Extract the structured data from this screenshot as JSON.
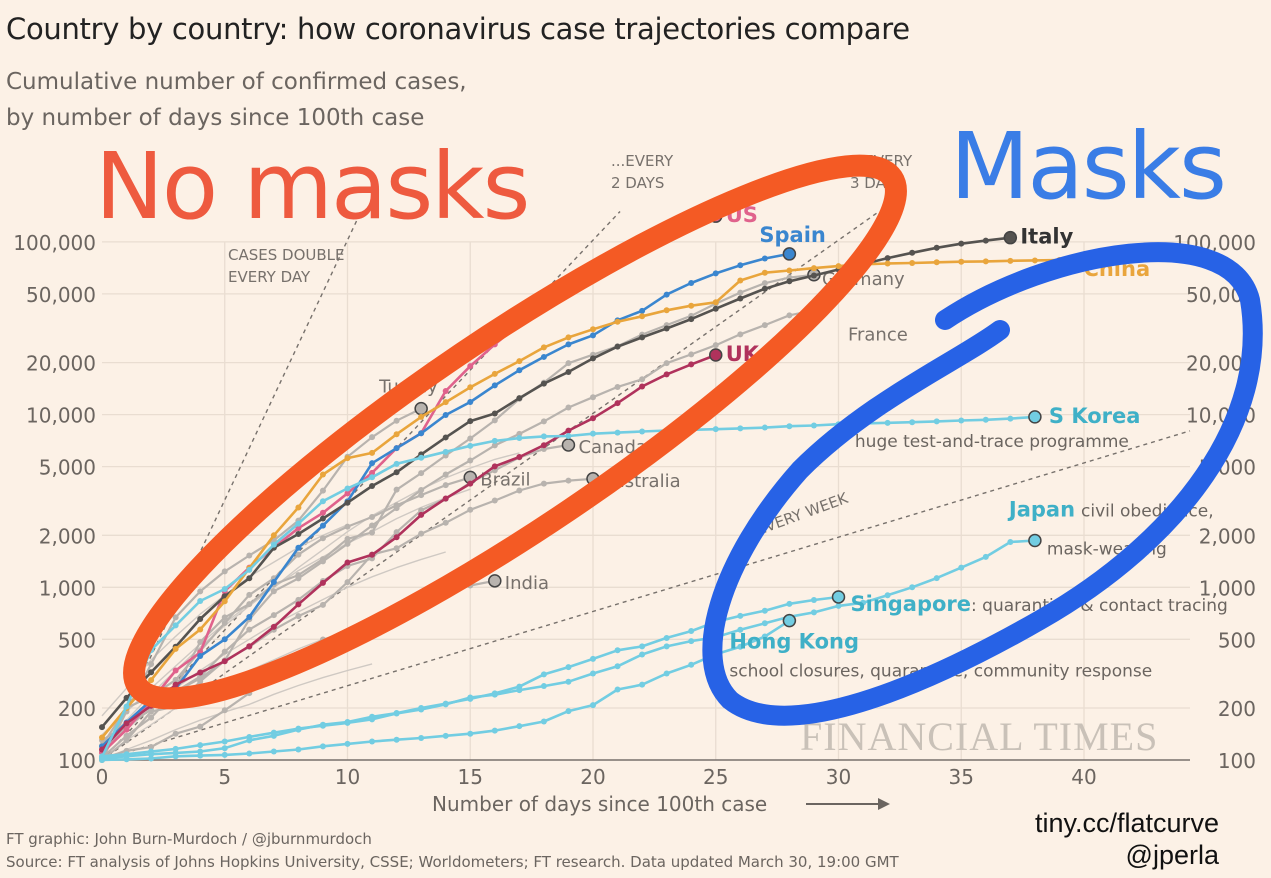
{
  "chart_data": {
    "type": "line",
    "title": "Country by country: how coronavirus case trajectories compare",
    "subtitle_lines": [
      "Cumulative number of confirmed cases,",
      "by number of days since 100th case"
    ],
    "xlabel": "Number of days since 100th case",
    "ylabel": "",
    "x_scale": "linear",
    "y_scale": "log",
    "xlim": [
      0,
      44
    ],
    "ylim": [
      100,
      100000
    ],
    "x_ticks": [
      0,
      5,
      10,
      15,
      20,
      25,
      30,
      35,
      40
    ],
    "y_ticks": [
      100,
      200,
      500,
      1000,
      2000,
      5000,
      10000,
      20000,
      50000,
      100000
    ],
    "y_tick_labels": [
      "100",
      "200",
      "500",
      "1,000",
      "2,000",
      "5,000",
      "10,000",
      "20,000",
      "50,000",
      "100,000"
    ],
    "grid": true,
    "y_axis_both_sides": true,
    "doubling_guides": [
      {
        "label_lines": [
          "CASES DOUBLE",
          "EVERY DAY"
        ],
        "days_per_doubling": 1
      },
      {
        "label_lines": [
          "...EVERY",
          "2 DAYS"
        ],
        "days_per_doubling": 2
      },
      {
        "label_lines": [
          "...EVERY",
          "3 DAYS"
        ],
        "days_per_doubling": 3
      },
      {
        "label_lines": [
          "...EVERY WEEK"
        ],
        "days_per_doubling": 7
      }
    ],
    "series": [
      {
        "name": "US",
        "color": "#e0628c",
        "label_color": "#e0628c",
        "bold": true,
        "values": [
          110,
          150,
          220,
          330,
          420,
          950,
          1300,
          1700,
          2200,
          2700,
          3500,
          4600,
          6400,
          7800,
          13700,
          19100,
          25500,
          33300,
          43800,
          53700,
          65800,
          83800,
          101700,
          121500,
          131000,
          140900
        ]
      },
      {
        "name": "Spain",
        "color": "#3a86cf",
        "label_color": "#3a86cf",
        "bold": true,
        "values": [
          120,
          165,
          222,
          259,
          400,
          500,
          673,
          1073,
          1695,
          2277,
          3146,
          5232,
          6391,
          7798,
          9942,
          11826,
          14769,
          18077,
          21571,
          25496,
          28768,
          35136,
          39885,
          49515,
          57786,
          65719,
          73235,
          80110,
          85195
        ]
      },
      {
        "name": "Italy",
        "color": "#555350",
        "label_color": "#333333",
        "bold": true,
        "values": [
          155,
          229,
          322,
          453,
          655,
          888,
          1128,
          1694,
          2036,
          2502,
          3089,
          3858,
          4636,
          5883,
          7375,
          9172,
          10149,
          12462,
          15113,
          17660,
          21157,
          24747,
          27980,
          31506,
          35713,
          41035,
          47021,
          53578,
          59138,
          63927,
          69176,
          74386,
          80589,
          86498,
          92472,
          97689,
          101739,
          105792
        ]
      },
      {
        "name": "China",
        "color": "#e9a53c",
        "label_color": "#e9a53c",
        "bold": true,
        "end_marker": false,
        "values": [
          135,
          200,
          290,
          440,
          570,
          830,
          1290,
          2000,
          2900,
          4500,
          5600,
          6000,
          7700,
          9700,
          11800,
          14400,
          17200,
          20400,
          24500,
          28000,
          31200,
          34500,
          37100,
          40200,
          42700,
          44700,
          59800,
          66300,
          68300,
          70500,
          72400,
          74200,
          75000,
          75500,
          76200,
          76800,
          77100,
          77700,
          78100,
          78500
        ]
      },
      {
        "name": "Germany",
        "color": "#b8b3ae",
        "label_color": "#77716c",
        "values": [
          130,
          159,
          196,
          262,
          482,
          670,
          799,
          1040,
          1176,
          1457,
          1908,
          2078,
          3675,
          4585,
          5795,
          7272,
          9257,
          12327,
          15320,
          19848,
          22213,
          24873,
          29056,
          32986,
          37323,
          43938,
          50871,
          57695,
          62095,
          64500
        ]
      },
      {
        "name": "France",
        "color": "#b8b3ae",
        "label_color": "#77716c",
        "end_marker": false,
        "values": [
          100,
          130,
          191,
          204,
          285,
          377,
          653,
          949,
          1126,
          1412,
          1784,
          2281,
          2876,
          3661,
          4499,
          5423,
          6633,
          7730,
          9134,
          10995,
          12612,
          14459,
          16018,
          19856,
          22304,
          25233,
          29155,
          32964,
          37575,
          40174
        ]
      },
      {
        "name": "UK",
        "color": "#b0325c",
        "label_color": "#b0325c",
        "bold": true,
        "values": [
          115,
          163,
          206,
          273,
          321,
          373,
          456,
          590,
          797,
          1061,
          1391,
          1543,
          1950,
          2626,
          3269,
          3983,
          5018,
          5683,
          6650,
          8077,
          9529,
          11658,
          14543,
          17089,
          19522,
          22141
        ]
      },
      {
        "name": "S Korea",
        "note": "huge test-and-trace programme",
        "color": "#72cde2",
        "label_color": "#3fb0c7",
        "bold": true,
        "values": [
          104,
          204,
          433,
          602,
          833,
          977,
          1261,
          1766,
          2337,
          3150,
          3736,
          4335,
          5186,
          5621,
          6088,
          6593,
          7041,
          7314,
          7478,
          7513,
          7755,
          7869,
          7979,
          8086,
          8162,
          8236,
          8320,
          8413,
          8565,
          8652,
          8799,
          8897,
          8961,
          9037,
          9137,
          9241,
          9332,
          9478,
          9700
        ]
      },
      {
        "name": "Japan",
        "note": "civil obedience, mask-wearing",
        "color": "#72cde2",
        "label_color": "#3fb0c7",
        "bold": true,
        "values": [
          105,
          108,
          112,
          116,
          122,
          128,
          136,
          144,
          152,
          158,
          164,
          172,
          186,
          196,
          210,
          230,
          239,
          254,
          268,
          284,
          317,
          349,
          408,
          455,
          488,
          514,
          568,
          619,
          675,
          716,
          780,
          814,
          900,
          1000,
          1130,
          1300,
          1500,
          1830,
          1866
        ]
      },
      {
        "name": "Singapore",
        "note": ": quarantine & contact tracing",
        "color": "#72cde2",
        "label_color": "#3fb0c7",
        "bold": true,
        "values": [
          102,
          105,
          108,
          110,
          112,
          117,
          130,
          138,
          150,
          160,
          166,
          178,
          187,
          200,
          212,
          226,
          243,
          266,
          313,
          345,
          385,
          432,
          455,
          509,
          558,
          631,
          683,
          732,
          802,
          844,
          879
        ]
      },
      {
        "name": "Hong Kong",
        "note": "school closures, quarantine, community response",
        "color": "#72cde2",
        "label_color": "#3fb0c7",
        "bold": true,
        "values": [
          100,
          101,
          102,
          105,
          106,
          107,
          109,
          112,
          115,
          120,
          124,
          128,
          131,
          134,
          138,
          142,
          148,
          157,
          167,
          192,
          208,
          256,
          273,
          317,
          356,
          410,
          453,
          519,
          641
        ]
      },
      {
        "name": "Turkey",
        "color": "#b8b3ae",
        "label_color": "#77716c",
        "values": [
          100,
          191,
          359,
          670,
          947,
          1236,
          1529,
          1872,
          2433,
          3629,
          5698,
          7402,
          9217,
          10827
        ]
      },
      {
        "name": "Canada",
        "color": "#b8b3ae",
        "label_color": "#77716c",
        "values": [
          103,
          138,
          176,
          249,
          304,
          424,
          569,
          690,
          846,
          1087,
          1328,
          1470,
          2088,
          2790,
          3251,
          4042,
          4757,
          5655,
          6320,
          6671
        ]
      },
      {
        "name": "Brazil",
        "color": "#b8b3ae",
        "label_color": "#77716c",
        "values": [
          121,
          200,
          234,
          291,
          428,
          621,
          904,
          1128,
          1546,
          1924,
          2247,
          2554,
          2985,
          3417,
          3904,
          4330
        ]
      },
      {
        "name": "Australia",
        "color": "#b8b3ae",
        "label_color": "#77716c",
        "values": [
          112,
          156,
          197,
          250,
          297,
          377,
          452,
          568,
          681,
          791,
          1071,
          1549,
          1682,
          2044,
          2364,
          2810,
          3179,
          3635,
          3985,
          4150,
          4250
        ]
      },
      {
        "name": "India",
        "color": "#b8b3ae",
        "label_color": "#77716c",
        "values": [
          102,
          113,
          119,
          142,
          156,
          194,
          244,
          330,
          396,
          499,
          536,
          657,
          727,
          887,
          987,
          1024,
          1090
        ]
      },
      {
        "color": "#cfc9c3",
        "thin": true,
        "values": [
          140,
          190,
          260,
          350,
          470,
          620,
          800,
          1000,
          1250,
          1500,
          1800,
          2100,
          2500,
          2900,
          3300,
          3700
        ]
      },
      {
        "color": "#cfc9c3",
        "thin": true,
        "values": [
          110,
          150,
          200,
          260,
          330,
          410,
          500,
          610,
          720,
          850,
          1000,
          1150,
          1300,
          1450,
          1600
        ]
      },
      {
        "color": "#cfc9c3",
        "thin": true,
        "values": [
          120,
          170,
          240,
          330,
          450,
          600,
          780,
          1000,
          1300,
          1650,
          2100,
          2600,
          3100,
          3700,
          4300,
          4900,
          5500,
          6000
        ]
      },
      {
        "color": "#cfc9c3",
        "thin": true,
        "values": [
          100,
          130,
          160,
          200,
          240,
          280,
          330,
          380,
          440,
          500,
          560,
          620,
          700,
          760
        ]
      },
      {
        "color": "#cfc9c3",
        "thin": true,
        "values": [
          180,
          260,
          380,
          520,
          700,
          900,
          1150,
          1400,
          1700,
          2000,
          2300
        ]
      },
      {
        "color": "#cfc9c3",
        "thin": true,
        "values": [
          100,
          115,
          130,
          150,
          170,
          190,
          210,
          240,
          270,
          300,
          330,
          360
        ]
      }
    ],
    "watermark": "FINANCIAL TIMES"
  },
  "overlay_annotations": {
    "no_masks": {
      "text": "No masks",
      "color": "#ee5a3f"
    },
    "masks": {
      "text": "Masks",
      "color": "#3a7de6"
    },
    "red_loop_color": "#f45a24",
    "blue_loop_color": "#2762e6"
  },
  "footer": {
    "graphic_credit": "FT graphic: John Burn-Murdoch / @jburnmurdoch",
    "source": "Source: FT analysis of Johns Hopkins University, CSSE; Worldometers; FT research. Data updated March 30, 19:00 GMT"
  },
  "credit": {
    "link": "tiny.cc/flatcurve",
    "handle": "@jperla"
  }
}
